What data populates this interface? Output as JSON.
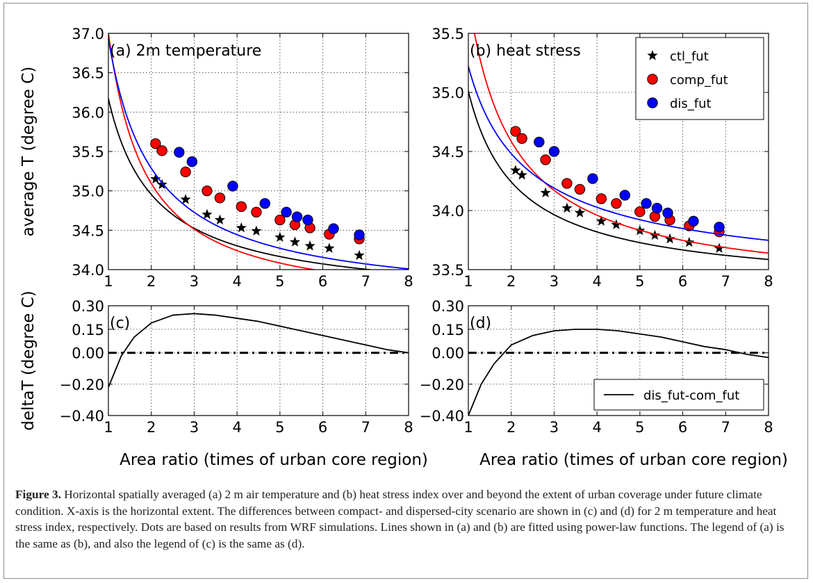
{
  "chart_data": [
    {
      "type": "scatter",
      "panel": "a",
      "title": "(a) 2m temperature",
      "ylabel": "average T (degree C)",
      "xlim": [
        1,
        8
      ],
      "ylim": [
        34.0,
        37.0
      ],
      "xticks": [
        "1",
        "2",
        "3",
        "4",
        "5",
        "6",
        "7",
        "8"
      ],
      "yticks": [
        "34.0",
        "34.5",
        "35.0",
        "35.5",
        "36.0",
        "36.5",
        "37.0"
      ],
      "grid": true,
      "series": [
        {
          "name": "ctl_fut",
          "marker": "star",
          "color": "#000000",
          "x": [
            2.1,
            2.25,
            2.8,
            3.3,
            3.6,
            4.1,
            4.45,
            5.0,
            5.35,
            5.7,
            6.15,
            6.85
          ],
          "y": [
            35.15,
            35.08,
            34.89,
            34.7,
            34.63,
            34.53,
            34.49,
            34.41,
            34.35,
            34.3,
            34.27,
            34.18
          ]
        },
        {
          "name": "comp_fut",
          "marker": "circle",
          "color": "#ff0000",
          "x": [
            2.1,
            2.25,
            2.8,
            3.3,
            3.6,
            4.1,
            4.45,
            5.0,
            5.35,
            5.7,
            6.15,
            6.85
          ],
          "y": [
            35.6,
            35.51,
            35.24,
            35.0,
            34.91,
            34.8,
            34.73,
            34.63,
            34.57,
            34.53,
            34.45,
            34.39
          ]
        },
        {
          "name": "dis_fut",
          "marker": "circle",
          "color": "#0000ff",
          "x": [
            2.65,
            2.95,
            3.9,
            4.65,
            5.15,
            5.4,
            5.65,
            6.25,
            6.85
          ],
          "y": [
            35.49,
            35.37,
            35.06,
            34.84,
            34.73,
            34.67,
            34.63,
            34.52,
            34.44
          ]
        },
        {
          "name": "ctl_fut fit",
          "color": "#000000",
          "fit": {
            "a": 36.17,
            "b": -0.9
          }
        },
        {
          "name": "comp_fut fit",
          "color": "#ff0000",
          "fit": {
            "a": 37.0,
            "b": -1.16
          }
        },
        {
          "name": "dis_fut fit",
          "color": "#0000ff",
          "fit": {
            "a": 36.93,
            "b": -0.96
          }
        }
      ]
    },
    {
      "type": "scatter",
      "panel": "b",
      "title": "(b) heat stress",
      "xlim": [
        1,
        8
      ],
      "ylim": [
        33.5,
        35.5
      ],
      "xticks": [
        "1",
        "2",
        "3",
        "4",
        "5",
        "6",
        "7",
        "8"
      ],
      "yticks": [
        "33.5",
        "34.0",
        "34.5",
        "35.0",
        "35.5"
      ],
      "grid": true,
      "legend": {
        "position": "top-right",
        "entries": [
          "ctl_fut",
          "comp_fut",
          "dis_fut"
        ]
      },
      "series": [
        {
          "name": "ctl_fut",
          "marker": "star",
          "color": "#000000",
          "x": [
            2.1,
            2.25,
            2.8,
            3.3,
            3.6,
            4.1,
            4.45,
            5.0,
            5.35,
            5.7,
            6.15,
            6.85
          ],
          "y": [
            34.34,
            34.3,
            34.15,
            34.02,
            33.98,
            33.91,
            33.88,
            33.83,
            33.79,
            33.76,
            33.73,
            33.68
          ]
        },
        {
          "name": "comp_fut",
          "marker": "circle",
          "color": "#ff0000",
          "x": [
            2.1,
            2.25,
            2.8,
            3.3,
            3.6,
            4.1,
            4.45,
            5.0,
            5.35,
            5.7,
            6.15,
            6.85
          ],
          "y": [
            34.67,
            34.61,
            34.43,
            34.23,
            34.18,
            34.1,
            34.06,
            33.99,
            33.95,
            33.92,
            33.87,
            33.82
          ]
        },
        {
          "name": "dis_fut",
          "marker": "circle",
          "color": "#0000ff",
          "x": [
            2.65,
            3.0,
            3.9,
            4.65,
            5.15,
            5.4,
            5.65,
            6.25,
            6.85
          ],
          "y": [
            34.58,
            34.5,
            34.27,
            34.13,
            34.06,
            34.02,
            33.98,
            33.91,
            33.86
          ]
        },
        {
          "name": "ctl_fut fit",
          "color": "#000000",
          "fit": {
            "a": 35.01,
            "b": -0.86
          }
        },
        {
          "name": "comp_fut fit",
          "color": "#ff0000",
          "fit": {
            "a": 35.8,
            "b": -0.96
          }
        },
        {
          "name": "dis_fut fit",
          "color": "#0000ff",
          "fit": {
            "a": 35.22,
            "b": -0.7
          }
        }
      ]
    },
    {
      "type": "line",
      "panel": "c",
      "title": "(c)",
      "ylabel": "deltaT (degree C)",
      "xlabel": "Area ratio (times of urban core region)",
      "xlim": [
        1,
        8
      ],
      "ylim": [
        -0.4,
        0.3
      ],
      "xticks": [
        "1",
        "2",
        "3",
        "4",
        "5",
        "6",
        "7",
        "8"
      ],
      "yticks": [
        "0.30",
        "0.15",
        "0.00",
        "−0.20",
        "−0.40"
      ],
      "grid": true,
      "series": [
        {
          "name": "dis_fut-com_fut",
          "color": "#000000",
          "x": [
            1.0,
            1.3,
            1.6,
            2.0,
            2.5,
            3.0,
            3.5,
            4.0,
            4.5,
            5.0,
            5.5,
            6.0,
            6.5,
            7.0,
            7.5,
            8.0
          ],
          "y": [
            -0.22,
            -0.02,
            0.1,
            0.19,
            0.24,
            0.25,
            0.24,
            0.22,
            0.2,
            0.17,
            0.14,
            0.11,
            0.08,
            0.05,
            0.02,
            0.0
          ]
        },
        {
          "name": "zero line",
          "color": "#000000",
          "style": "dashed",
          "x": [
            1,
            8
          ],
          "y": [
            0,
            0
          ]
        }
      ]
    },
    {
      "type": "line",
      "panel": "d",
      "title": "(d)",
      "xlabel": "Area ratio (times of urban core region)",
      "xlim": [
        1,
        8
      ],
      "ylim": [
        -0.4,
        0.3
      ],
      "xticks": [
        "1",
        "2",
        "3",
        "4",
        "5",
        "6",
        "7",
        "8"
      ],
      "yticks": [
        "0.30",
        "0.15",
        "0.00",
        "−0.20",
        "−0.40"
      ],
      "grid": true,
      "legend": {
        "position": "lower-right",
        "entries": [
          "dis_fut-com_fut"
        ]
      },
      "series": [
        {
          "name": "dis_fut-com_fut",
          "color": "#000000",
          "x": [
            1.0,
            1.3,
            1.6,
            2.0,
            2.5,
            3.0,
            3.5,
            4.0,
            4.5,
            5.0,
            5.5,
            6.0,
            6.5,
            7.0,
            7.5,
            8.0
          ],
          "y": [
            -0.4,
            -0.2,
            -0.07,
            0.05,
            0.11,
            0.14,
            0.15,
            0.15,
            0.14,
            0.12,
            0.1,
            0.07,
            0.04,
            0.02,
            -0.01,
            -0.03
          ]
        },
        {
          "name": "zero line",
          "color": "#000000",
          "style": "dashed",
          "x": [
            1,
            8
          ],
          "y": [
            0,
            0
          ]
        }
      ]
    }
  ],
  "caption": {
    "lead": "Figure 3.",
    "text": " Horizontal spatially averaged (a) 2 m air temperature and (b) heat stress index over and beyond the extent of urban coverage under future climate condition. X-axis is the horizontal extent. The differences between compact- and dispersed-city scenario are shown in (c) and (d) for 2 m temperature and heat stress index, respectively. Dots are based on results from WRF simulations. Lines shown in (a) and (b) are fitted using power-law functions. The legend of (a) is the same as (b), and also the legend of (c) is the same as (d)."
  }
}
